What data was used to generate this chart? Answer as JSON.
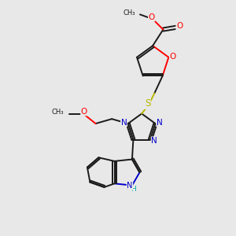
{
  "bg_color": "#e8e8e8",
  "bond_color": "#1a1a1a",
  "colors": {
    "O": "#ff0000",
    "N": "#0000cc",
    "S": "#b8b800",
    "H": "#00aaaa",
    "C": "#1a1a1a"
  },
  "figsize": [
    3.0,
    3.0
  ],
  "dpi": 100,
  "xlim": [
    0,
    10
  ],
  "ylim": [
    0,
    10
  ]
}
